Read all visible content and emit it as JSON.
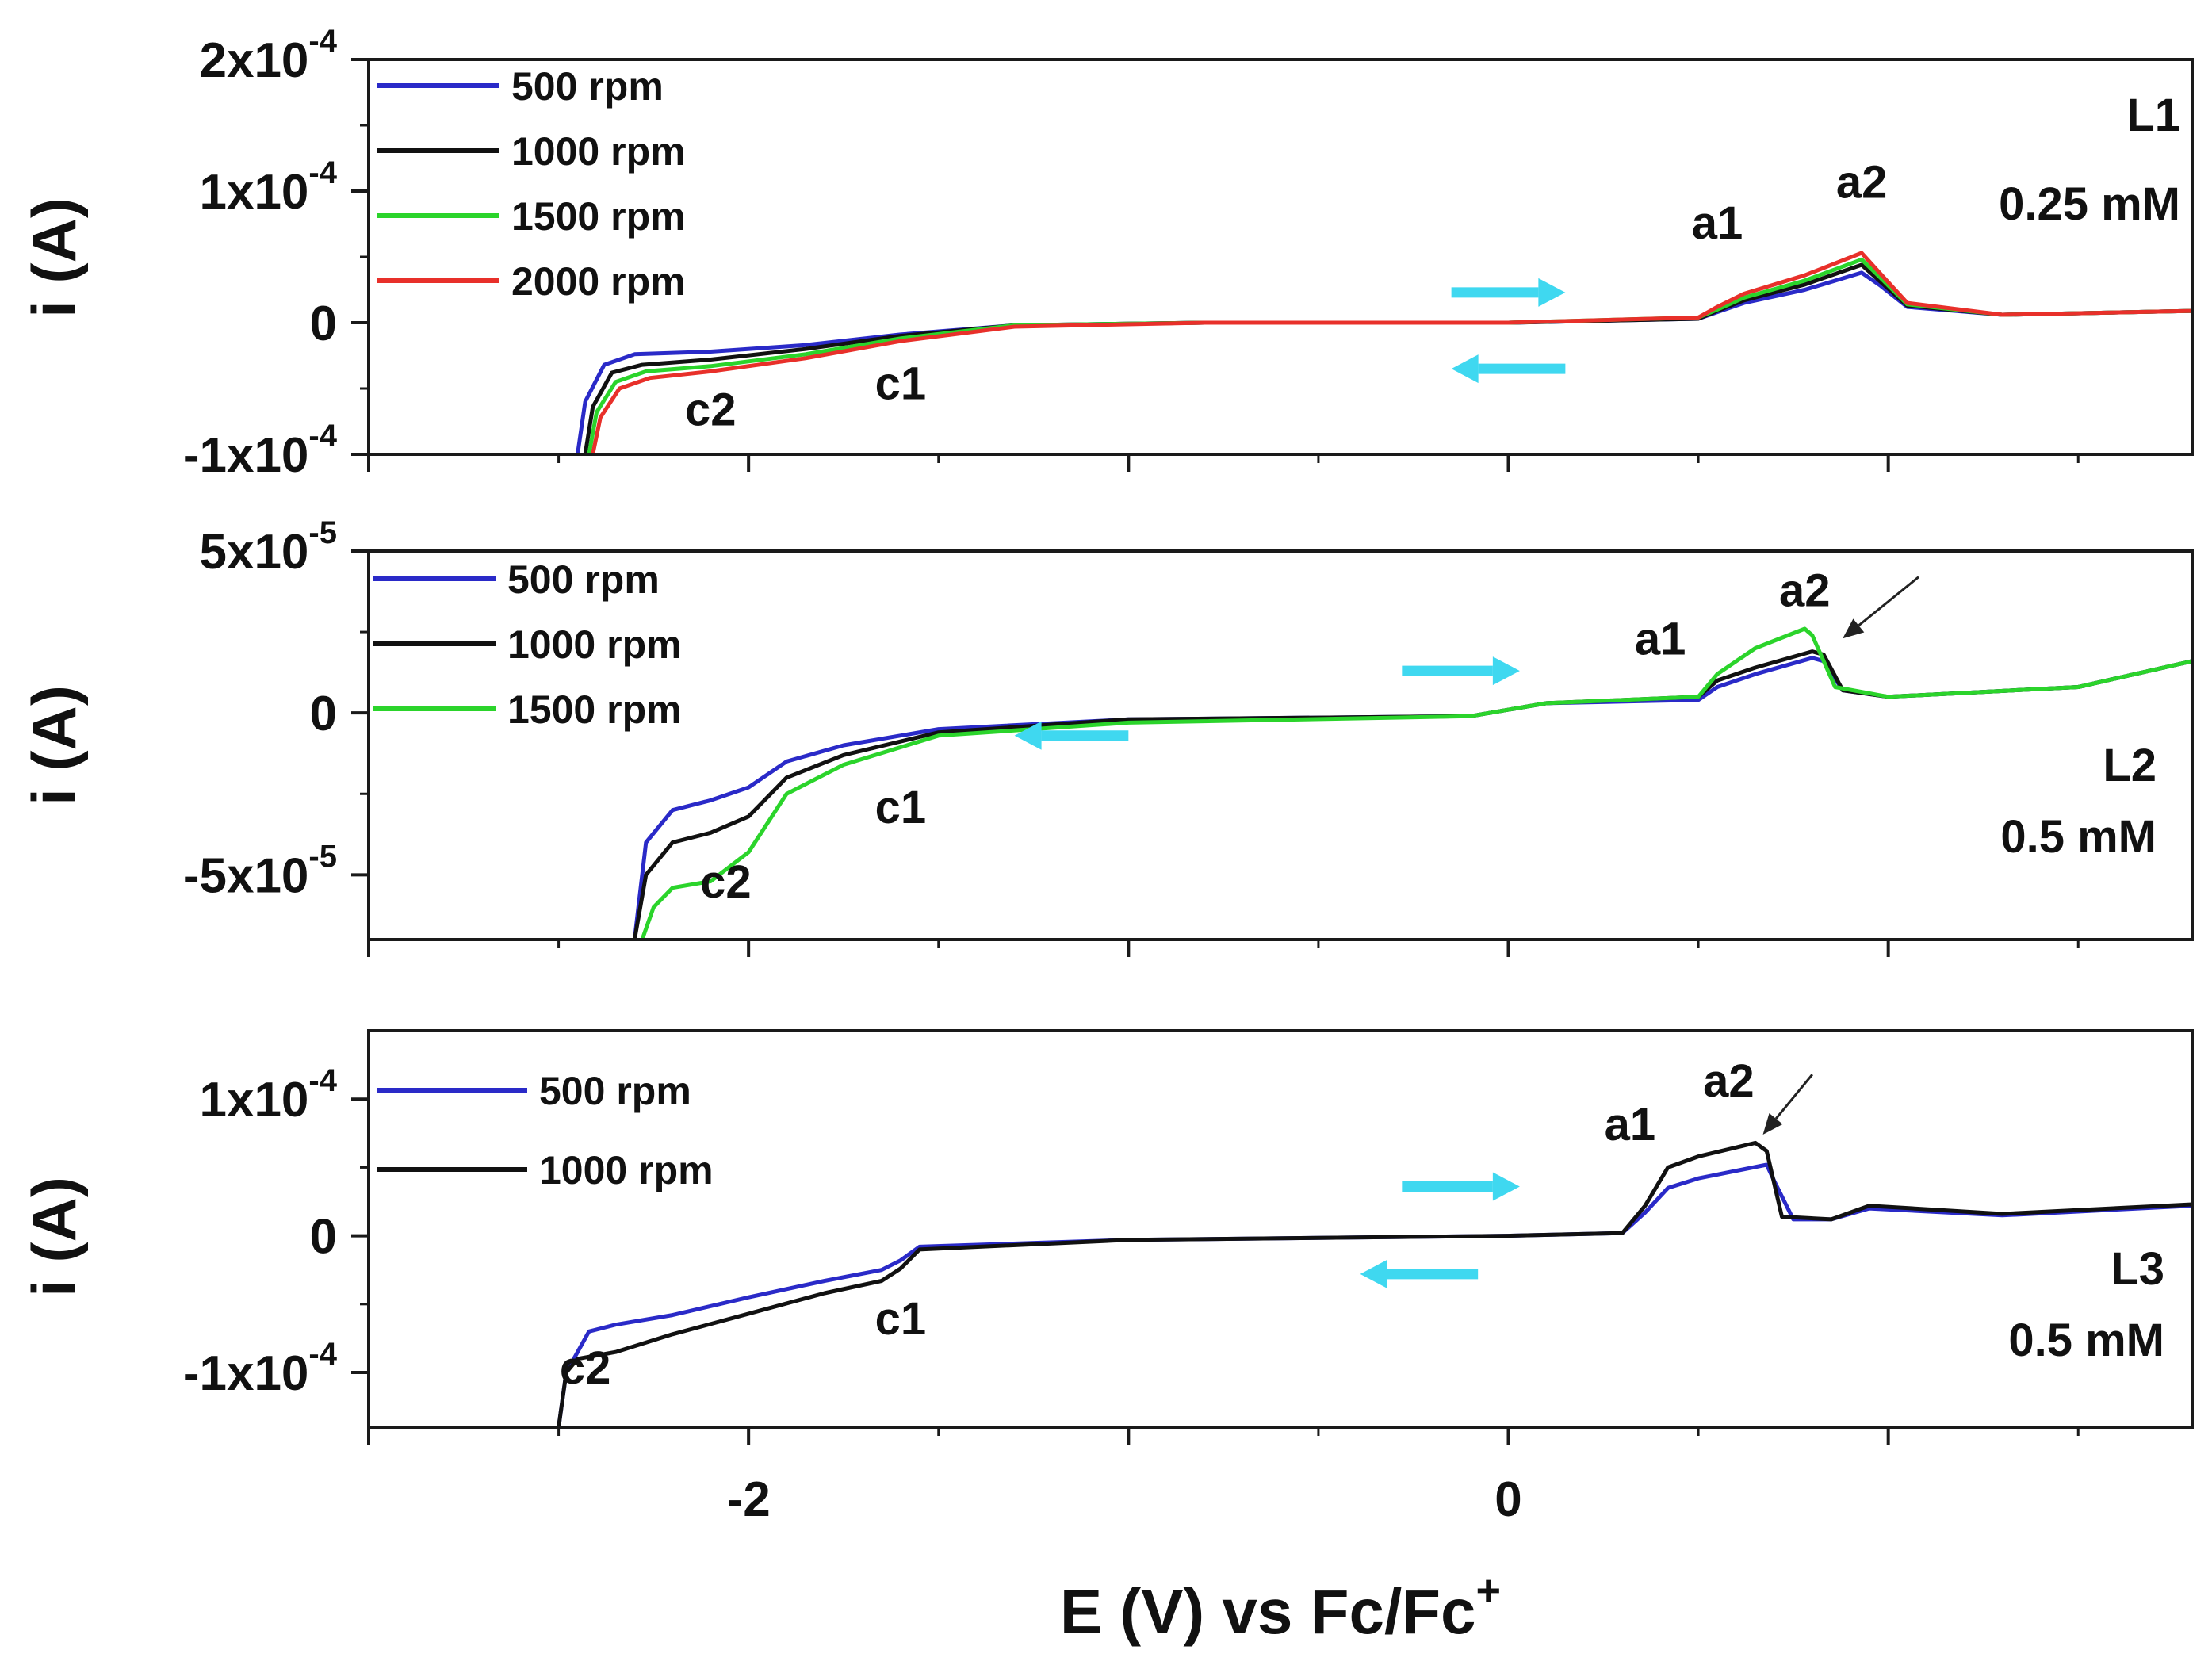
{
  "chart_data": {
    "type": "line",
    "x_title": {
      "main": "E (V) vs Fc/Fc",
      "sup": "+"
    },
    "xlim": [
      -3.0,
      1.8
    ],
    "x_ticks": [
      -2,
      0
    ],
    "x_tick_labels": [
      "-2",
      "0"
    ],
    "colors": {
      "arrow": "#3fd8f0",
      "frame": "#1a1a1a"
    },
    "panels": [
      {
        "ylabel": "i (A)",
        "ylim": [
          -0.0001,
          0.0002
        ],
        "y_ticks": [
          {
            "value": 0.0002,
            "mantissa": "2x10",
            "exp": "-4"
          },
          {
            "value": 0.0001,
            "mantissa": "1x10",
            "exp": "-4"
          },
          {
            "value": 0,
            "mantissa": "0",
            "exp": ""
          },
          {
            "value": -0.0001,
            "mantissa": "-1x10",
            "exp": "-4"
          }
        ],
        "label": "L1",
        "concentration": "0.25 mM",
        "peaks": [
          {
            "text": "a1",
            "x": 0.55,
            "y": 6.4e-05
          },
          {
            "text": "a2",
            "x": 0.93,
            "y": 9.5e-05
          },
          {
            "text": "c1",
            "x": -1.6,
            "y": -5.8e-05
          },
          {
            "text": "c2",
            "x": -2.1,
            "y": -7.8e-05
          }
        ],
        "sweep_arrows": [
          {
            "dir": "right",
            "x0": -0.15,
            "x1": 0.15,
            "y": 2.3e-05
          },
          {
            "dir": "left",
            "x0": 0.15,
            "x1": -0.15,
            "y": -3.5e-05
          }
        ],
        "series": [
          {
            "name": "500 rpm",
            "color": "#2a2ac8",
            "x": [
              -2.45,
              -2.43,
              -2.38,
              -2.3,
              -2.1,
              -1.85,
              -1.6,
              -1.3,
              -0.8,
              0.0,
              0.5,
              0.55,
              0.62,
              0.78,
              0.93,
              0.98,
              1.05,
              1.3,
              1.8
            ],
            "y": [
              -0.0001,
              -6e-05,
              -3.2e-05,
              -2.4e-05,
              -2.2e-05,
              -1.7e-05,
              -9e-06,
              -2e-06,
              0.0,
              0.0,
              3e-06,
              8e-06,
              1.5e-05,
              2.5e-05,
              3.8e-05,
              2.8e-05,
              1.2e-05,
              6e-06,
              9e-06
            ]
          },
          {
            "name": "1000 rpm",
            "color": "#111111",
            "x": [
              -2.43,
              -2.41,
              -2.36,
              -2.28,
              -2.1,
              -1.85,
              -1.6,
              -1.3,
              -0.8,
              0.0,
              0.5,
              0.55,
              0.62,
              0.78,
              0.93,
              0.98,
              1.05,
              1.3,
              1.8
            ],
            "y": [
              -0.0001,
              -6.4e-05,
              -3.8e-05,
              -3.2e-05,
              -2.8e-05,
              -2e-05,
              -1e-05,
              -2e-06,
              0.0,
              0.0,
              3e-06,
              9e-06,
              1.7e-05,
              2.9e-05,
              4.4e-05,
              3.1e-05,
              1.3e-05,
              6e-06,
              9e-06
            ]
          },
          {
            "name": "1500 rpm",
            "color": "#2bd42b",
            "x": [
              -2.42,
              -2.4,
              -2.35,
              -2.27,
              -2.1,
              -1.85,
              -1.6,
              -1.3,
              -0.8,
              0.0,
              0.5,
              0.55,
              0.62,
              0.78,
              0.93,
              0.98,
              1.05,
              1.3,
              1.8
            ],
            "y": [
              -0.0001,
              -6.8e-05,
              -4.5e-05,
              -3.7e-05,
              -3.3e-05,
              -2.4e-05,
              -1.2e-05,
              -2e-06,
              0.0,
              0.0,
              4e-06,
              1e-05,
              1.9e-05,
              3.2e-05,
              4.8e-05,
              3.4e-05,
              1.4e-05,
              6e-06,
              9e-06
            ]
          },
          {
            "name": "2000 rpm",
            "color": "#e8302a",
            "x": [
              -2.41,
              -2.39,
              -2.34,
              -2.26,
              -2.1,
              -1.85,
              -1.6,
              -1.3,
              -0.8,
              0.0,
              0.5,
              0.55,
              0.62,
              0.78,
              0.93,
              0.98,
              1.05,
              1.3,
              1.8
            ],
            "y": [
              -0.0001,
              -7.2e-05,
              -5e-05,
              -4.2e-05,
              -3.7e-05,
              -2.7e-05,
              -1.4e-05,
              -3e-06,
              0.0,
              0.0,
              4e-06,
              1.2e-05,
              2.2e-05,
              3.6e-05,
              5.3e-05,
              3.7e-05,
              1.5e-05,
              6e-06,
              9e-06
            ]
          }
        ]
      },
      {
        "ylabel": "i (A)",
        "ylim": [
          -7e-05,
          5e-05
        ],
        "y_ticks": [
          {
            "value": 5e-05,
            "mantissa": "5x10",
            "exp": "-5"
          },
          {
            "value": 0,
            "mantissa": "0",
            "exp": ""
          },
          {
            "value": -5e-05,
            "mantissa": "-5x10",
            "exp": "-5"
          }
        ],
        "label": "L2",
        "concentration": "0.5 mM",
        "peaks": [
          {
            "text": "a1",
            "x": 0.4,
            "y": 1.8e-05
          },
          {
            "text": "a2",
            "x": 0.78,
            "y": 3.3e-05
          },
          {
            "text": "c1",
            "x": -1.6,
            "y": -3.4e-05
          },
          {
            "text": "c2",
            "x": -2.06,
            "y": -5.7e-05
          }
        ],
        "sweep_arrows": [
          {
            "dir": "right",
            "x0": -0.28,
            "x1": 0.03,
            "y": 1.3e-05
          },
          {
            "dir": "left",
            "x0": -1.0,
            "x1": -1.3,
            "y": -7e-06
          }
        ],
        "arrow_pointer": {
          "x0": 1.08,
          "y0": 4.2e-05,
          "x1": 0.88,
          "y1": 2.3e-05
        },
        "series": [
          {
            "name": "500 rpm",
            "color": "#2a2ac8",
            "x": [
              -2.3,
              -2.27,
              -2.2,
              -2.1,
              -2.0,
              -1.9,
              -1.75,
              -1.5,
              -1.0,
              -0.1,
              0.1,
              0.5,
              0.55,
              0.65,
              0.8,
              0.83,
              0.88,
              1.0,
              1.5,
              1.8
            ],
            "y": [
              -7e-05,
              -4e-05,
              -3e-05,
              -2.7e-05,
              -2.3e-05,
              -1.5e-05,
              -1e-05,
              -5e-06,
              -2e-06,
              -1e-06,
              3e-06,
              4e-06,
              8e-06,
              1.2e-05,
              1.7e-05,
              1.6e-05,
              7e-06,
              5e-06,
              8e-06,
              1.6e-05
            ]
          },
          {
            "name": "1000 rpm",
            "color": "#111111",
            "x": [
              -2.3,
              -2.27,
              -2.2,
              -2.1,
              -2.0,
              -1.9,
              -1.75,
              -1.5,
              -1.0,
              -0.1,
              0.1,
              0.5,
              0.55,
              0.65,
              0.8,
              0.83,
              0.88,
              1.0,
              1.5,
              1.8
            ],
            "y": [
              -7e-05,
              -5e-05,
              -4e-05,
              -3.7e-05,
              -3.2e-05,
              -2e-05,
              -1.3e-05,
              -6e-06,
              -2e-06,
              -1e-06,
              3e-06,
              5e-06,
              1e-05,
              1.4e-05,
              1.9e-05,
              1.8e-05,
              7e-06,
              5e-06,
              8e-06,
              1.6e-05
            ]
          },
          {
            "name": "1500 rpm",
            "color": "#2bd42b",
            "x": [
              -2.28,
              -2.25,
              -2.2,
              -2.1,
              -2.0,
              -1.9,
              -1.75,
              -1.5,
              -1.0,
              -0.1,
              0.1,
              0.5,
              0.55,
              0.65,
              0.78,
              0.8,
              0.86,
              1.0,
              1.5,
              1.8
            ],
            "y": [
              -7e-05,
              -6e-05,
              -5.4e-05,
              -5.2e-05,
              -4.3e-05,
              -2.5e-05,
              -1.6e-05,
              -7e-06,
              -3e-06,
              -1e-06,
              3e-06,
              5e-06,
              1.2e-05,
              2e-05,
              2.6e-05,
              2.4e-05,
              8e-06,
              5e-06,
              8e-06,
              1.6e-05
            ]
          }
        ]
      },
      {
        "ylabel": "i (A)",
        "ylim": [
          -0.00014,
          0.00015
        ],
        "y_ticks": [
          {
            "value": 0.0001,
            "mantissa": "1x10",
            "exp": "-4"
          },
          {
            "value": 0,
            "mantissa": "0",
            "exp": ""
          },
          {
            "value": -0.0001,
            "mantissa": "-1x10",
            "exp": "-4"
          }
        ],
        "label": "L3",
        "concentration": "0.5 mM",
        "peaks": [
          {
            "text": "a1",
            "x": 0.32,
            "y": 7e-05
          },
          {
            "text": "a2",
            "x": 0.58,
            "y": 0.000102
          },
          {
            "text": "c1",
            "x": -1.6,
            "y": -7.2e-05
          },
          {
            "text": "c2",
            "x": -2.43,
            "y": -0.000108
          }
        ],
        "sweep_arrows": [
          {
            "dir": "right",
            "x0": -0.28,
            "x1": 0.03,
            "y": 3.6e-05
          },
          {
            "dir": "left",
            "x0": -0.08,
            "x1": -0.39,
            "y": -2.8e-05
          }
        ],
        "arrow_pointer": {
          "x0": 0.8,
          "y0": 0.000118,
          "x1": 0.67,
          "y1": 7.4e-05
        },
        "series": [
          {
            "name": "500 rpm",
            "color": "#2a2ac8",
            "x": [
              -2.5,
              -2.48,
              -2.42,
              -2.35,
              -2.2,
              -2.0,
              -1.8,
              -1.65,
              -1.6,
              -1.55,
              -1.0,
              0.0,
              0.3,
              0.36,
              0.42,
              0.5,
              0.68,
              0.7,
              0.75,
              0.85,
              0.95,
              1.3,
              1.8
            ],
            "y": [
              -0.00014,
              -0.0001,
              -7e-05,
              -6.5e-05,
              -5.8e-05,
              -4.5e-05,
              -3.3e-05,
              -2.5e-05,
              -1.8e-05,
              -8e-06,
              -3e-06,
              0.0,
              2e-06,
              1.7e-05,
              3.5e-05,
              4.2e-05,
              5.2e-05,
              4e-05,
              1.2e-05,
              1.2e-05,
              2e-05,
              1.5e-05,
              2.2e-05
            ]
          },
          {
            "name": "1000 rpm",
            "color": "#111111",
            "x": [
              -2.5,
              -2.48,
              -2.45,
              -2.35,
              -2.2,
              -2.0,
              -1.8,
              -1.65,
              -1.6,
              -1.55,
              -1.0,
              0.0,
              0.3,
              0.36,
              0.42,
              0.5,
              0.65,
              0.68,
              0.72,
              0.85,
              0.95,
              1.3,
              1.8
            ],
            "y": [
              -0.00014,
              -0.0001,
              -9e-05,
              -8.5e-05,
              -7.2e-05,
              -5.7e-05,
              -4.2e-05,
              -3.3e-05,
              -2.4e-05,
              -1e-05,
              -3e-06,
              0.0,
              2e-06,
              2.2e-05,
              5e-05,
              5.8e-05,
              6.8e-05,
              6.2e-05,
              1.4e-05,
              1.2e-05,
              2.2e-05,
              1.6e-05,
              2.3e-05
            ]
          }
        ]
      }
    ]
  }
}
